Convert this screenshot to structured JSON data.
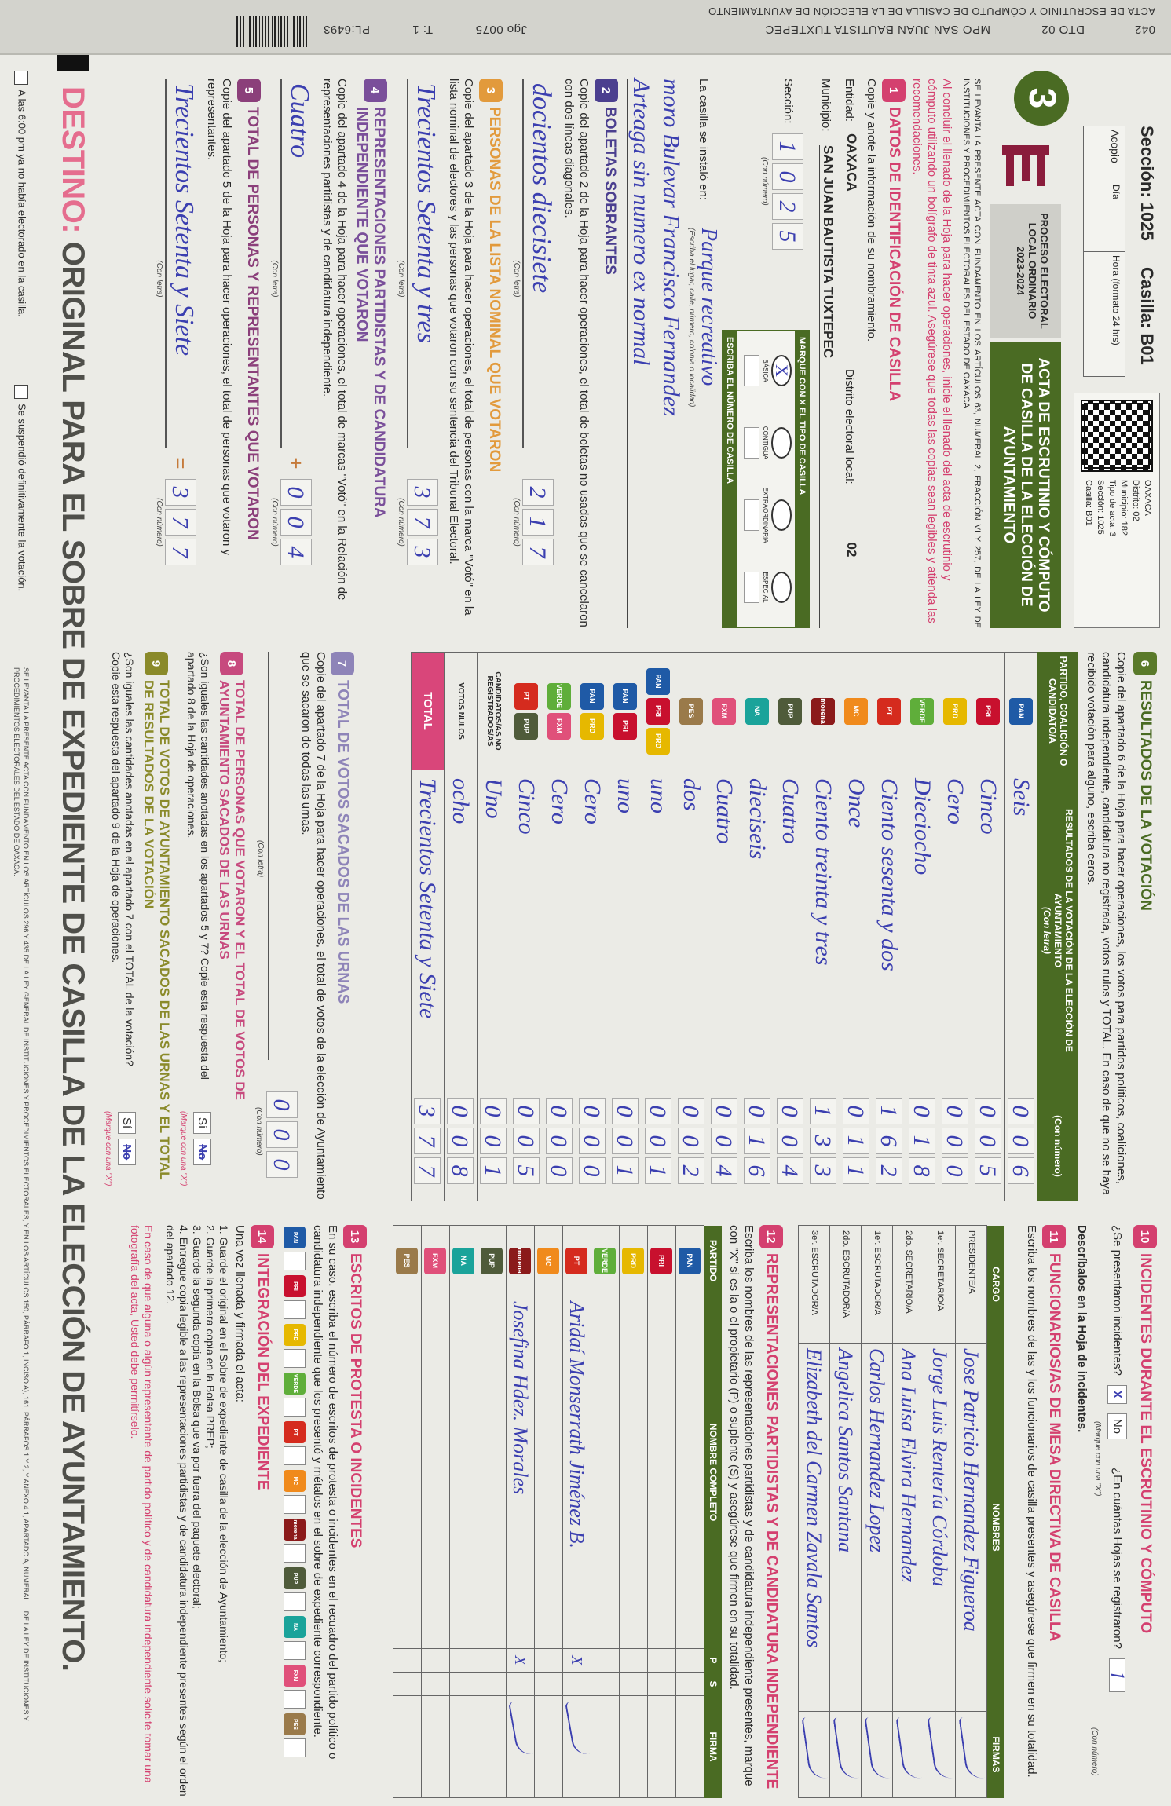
{
  "top_strip": {
    "code": "042",
    "distrito": "DTO 02",
    "municipio": "MPO SAN JUAN BAUTISTA TUXTEPEC",
    "acta": "ACTA DE ESCRUTINIO Y CÓMPUTO DE CASILLA DE LA ELECCIÓN DE AYUNTAMIENTO",
    "juego": "Jgo 0075",
    "tanto": "T: 1",
    "pl": "PL:6493"
  },
  "header": {
    "seccion": "Sección: 1025",
    "casilla": "Casilla: B01",
    "acopio": {
      "label": "Acopio",
      "dia": "Día",
      "hora": "Hora (formato 24 hrs)"
    },
    "qr_text": [
      "OAXACA",
      "Distrito: 02",
      "Municipio: 182",
      "Tipo de acta: 3",
      "Sección: 1025",
      "Casilla: B01"
    ],
    "big_number": "3",
    "process": "PROCESO ELECTORAL LOCAL ORDINARIO 2023-2024",
    "title": "ACTA DE ESCRUTINIO Y CÓMPUTO DE CASILLA DE LA ELECCIÓN DE AYUNTAMIENTO",
    "legal": "SE LEVANTA LA PRESENTE ACTA CON FUNDAMENTO EN LOS ARTÍCULOS 63, NUMERAL 2, FRACCIÓN VI Y 257, DE LA LEY DE INSTITUCIONES Y PROCEDIMIENTOS ELECTORALES DEL ESTADO DE OAXACA",
    "instructions": "Al concluir el llenado de la Hoja para hacer operaciones, inicie el llenado del acta de escrutinio y cómputo utilizando un bolígrafo de tinta azul. Asegúrese que todas las copias sean legibles y atienda las recomendaciones."
  },
  "s1": {
    "num": "1",
    "title": "DATOS DE IDENTIFICACIÓN DE CASILLA",
    "text": "Copie y anote la información de su nombramiento.",
    "entidad_label": "Entidad:",
    "entidad": "OAXACA",
    "distrito_label": "Distrito electoral local:",
    "distrito": "02",
    "municipio_label": "Municipio:",
    "municipio": "SAN JUAN BAUTISTA TUXTEPEC",
    "seccion_label": "Sección:",
    "seccion_digits": [
      "1",
      "0",
      "2",
      "5"
    ],
    "con_numero": "(Con número)",
    "tipo_header": "MARQUE CON X EL TIPO DE CASILLA",
    "tipo_options": [
      "BÁSICA",
      "CONTIGUA",
      "EXTRAORDINARIA",
      "ESPECIAL"
    ],
    "tipo_mark": "X",
    "numero_header": "ESCRIBA EL NÚMERO DE CASILLA",
    "instalo_label": "La casilla se instaló en:",
    "instalo_hint": "(Escriba el lugar, calle, número, colonia o localidad)",
    "instalo_lines": [
      "Parque recreativo",
      "moro Bulevar Francisco Fernandez",
      "Arteaga sin numero ex normal"
    ]
  },
  "s2": {
    "num": "2",
    "title": "BOLETAS SOBRANTES",
    "text": "Copie del apartado 2 de la Hoja para hacer operaciones, el total de boletas no usadas que se cancelaron con dos líneas diagonales.",
    "letra": "docientos diecisiete",
    "numero": [
      "2",
      "1",
      "7"
    ],
    "con_letra": "(Con letra)",
    "con_numero": "(Con número)"
  },
  "s3": {
    "num": "3",
    "title": "PERSONAS DE LA LISTA NOMINAL QUE VOTARON",
    "text": "Copie del apartado 3 de la Hoja para hacer operaciones, el total de personas con la marca \"Votó\" en la lista nominal de electores y las personas que votaron con su sentencia del Tribunal Electoral.",
    "letra": "Trecientos Setenta y tres",
    "numero": [
      "3",
      "7",
      "3"
    ],
    "con_letra": "(Con letra)",
    "con_numero": "(Con número)"
  },
  "s4": {
    "num": "4",
    "title": "REPRESENTACIONES PARTIDISTAS Y DE CANDIDATURA INDEPENDIENTE QUE VOTARON",
    "text": "Copie del apartado 4 de la Hoja para hacer operaciones, el total de marcas \"Votó\" en la Relación de representaciones partidistas y de candidatura independiente.",
    "letra": "Cuatro",
    "numero": [
      "0",
      "0",
      "4"
    ],
    "op": "+",
    "con_letra": "(Con letra)",
    "con_numero": "(Con número)"
  },
  "s5": {
    "num": "5",
    "title": "TOTAL DE PERSONAS Y REPRESENTANTES QUE VOTARON",
    "text": "Copie del apartado 5 de la Hoja para hacer operaciones, el total de personas que votaron y representantes.",
    "letra": "Trecientos Setenta y Siete",
    "numero": [
      "3",
      "7",
      "7"
    ],
    "op": "=",
    "con_letra": "(Con letra)",
    "con_numero": "(Con número)"
  },
  "s6": {
    "num": "6",
    "title": "RESULTADOS DE LA VOTACIÓN",
    "text": "Copie del apartado 6 de la Hoja para hacer operaciones, los votos para partidos políticos, coaliciones, candidatura independiente, candidatura no registrada, votos nulos y TOTAL. En caso de que no se haya recibido votación para alguno, escriba ceros.",
    "col_party": "PARTIDO, COALICIÓN O CANDIDATO/A",
    "col_letra": "RESULTADOS DE LA VOTACIÓN DE LA ELECCIÓN DE AYUNTAMIENTO",
    "col_letra_sub": "(Con letra)",
    "col_numero": "(Con número)",
    "rows": [
      {
        "logos": [
          {
            "t": "PAN",
            "c": "#1f5aa6",
            "icon": "pan-logo-icon"
          }
        ],
        "letra": "Seis",
        "numero": "006"
      },
      {
        "logos": [
          {
            "t": "PRI",
            "c": "#c8102e",
            "icon": "pri-logo-icon"
          }
        ],
        "letra": "Cinco",
        "numero": "005"
      },
      {
        "logos": [
          {
            "t": "PRD",
            "c": "#e6b800",
            "icon": "prd-logo-icon"
          }
        ],
        "letra": "Cero",
        "numero": "000"
      },
      {
        "logos": [
          {
            "t": "VERDE",
            "c": "#5fae3a",
            "icon": "pvem-logo-icon"
          }
        ],
        "letra": "Dieciocho",
        "numero": "018"
      },
      {
        "logos": [
          {
            "t": "PT",
            "c": "#d52b1e",
            "icon": "pt-logo-icon"
          }
        ],
        "letra": "Ciento sesenta y dos",
        "numero": "162"
      },
      {
        "logos": [
          {
            "t": "MC",
            "c": "#f08a1c",
            "icon": "mc-logo-icon"
          }
        ],
        "letra": "Once",
        "numero": "011"
      },
      {
        "logos": [
          {
            "t": "morena",
            "c": "#8b1a1a",
            "icon": "morena-logo-icon"
          }
        ],
        "letra": "Ciento treinta y tres",
        "numero": "133"
      },
      {
        "logos": [
          {
            "t": "PUP",
            "c": "#4f5b3a",
            "icon": "party-dark-logo-icon"
          }
        ],
        "letra": "Cuatro",
        "numero": "004"
      },
      {
        "logos": [
          {
            "t": "NA",
            "c": "#1aa39a",
            "icon": "party-teal-logo-icon"
          }
        ],
        "letra": "dieciseis",
        "numero": "016"
      },
      {
        "logos": [
          {
            "t": "FXM",
            "c": "#e0507a",
            "icon": "party-pink-logo-icon"
          }
        ],
        "letra": "Cuatro",
        "numero": "004"
      },
      {
        "logos": [
          {
            "t": "PES",
            "c": "#9a7a4a",
            "icon": "party-small-logo-icon"
          }
        ],
        "letra": "dos",
        "numero": "002"
      },
      {
        "logos": [
          {
            "t": "PAN",
            "c": "#1f5aa6",
            "icon": "pan-logo-icon"
          },
          {
            "t": "PRI",
            "c": "#c8102e",
            "icon": "pri-logo-icon"
          },
          {
            "t": "PRD",
            "c": "#e6b800",
            "icon": "prd-logo-icon"
          }
        ],
        "letra": "uno",
        "numero": "001"
      },
      {
        "logos": [
          {
            "t": "PAN",
            "c": "#1f5aa6",
            "icon": "pan-logo-icon"
          },
          {
            "t": "PRI",
            "c": "#c8102e",
            "icon": "pri-logo-icon"
          }
        ],
        "letra": "uno",
        "numero": "001"
      },
      {
        "logos": [
          {
            "t": "PAN",
            "c": "#1f5aa6",
            "icon": "pan-logo-icon"
          },
          {
            "t": "PRD",
            "c": "#e6b800",
            "icon": "prd-logo-icon"
          }
        ],
        "letra": "Cero",
        "numero": "000"
      },
      {
        "logos": [
          {
            "t": "VERDE",
            "c": "#5fae3a",
            "icon": "pvem-logo-icon"
          },
          {
            "t": "FXM",
            "c": "#e0507a",
            "icon": "party-pink-logo-icon"
          }
        ],
        "letra": "Cero",
        "numero": "000"
      },
      {
        "logos": [
          {
            "t": "PT",
            "c": "#d52b1e",
            "icon": "pt-logo-icon"
          },
          {
            "t": "PUP",
            "c": "#4f5b3a",
            "icon": "party-dark-logo-icon"
          }
        ],
        "letra": "Cinco",
        "numero": "005"
      },
      {
        "label": "CANDIDATOS/AS NO REGISTRADOS/AS",
        "letra": "Uno",
        "numero": "001"
      },
      {
        "label": "VOTOS NULOS",
        "letra": "ocho",
        "numero": "008"
      },
      {
        "label": "TOTAL",
        "letra": "Trecientos Setenta y Siete",
        "numero": "377",
        "total": true
      }
    ]
  },
  "s7": {
    "num": "7",
    "title": "TOTAL DE VOTOS SACADOS DE LAS URNAS",
    "text": "Copie del apartado 7 de la Hoja para hacer operaciones, el total de votos de la elección de Ayuntamiento que se sacaron de todas las urnas.",
    "numero": [
      "0",
      "0",
      "0"
    ],
    "con_letra": "(Con letra)",
    "con_numero": "(Con número)"
  },
  "s8": {
    "num": "8",
    "title": "TOTAL DE PERSONAS QUE VOTARON Y EL TOTAL DE VOTOS DE AYUNTAMIENTO SACADOS DE LAS URNAS",
    "text": "¿Son iguales las cantidades anotadas en los apartados 5 y 7? Copie esta respuesta del apartado 8 de la Hoja de operaciones.",
    "si": "Sí",
    "no": "No",
    "marked": "no",
    "hint": "(Marque con una \"X\")"
  },
  "s9": {
    "num": "9",
    "title": "TOTAL DE VOTOS DE AYUNTAMIENTO SACADOS DE LAS URNAS Y EL TOTAL DE RESULTADOS DE LA VOTACIÓN",
    "text": "¿Son iguales las cantidades anotadas en el apartado 7 con el TOTAL de la votación? Copie esta respuesta del apartado 9 de la Hoja de operaciones.",
    "si": "Sí",
    "no": "No",
    "marked": "no",
    "hint": "(Marque con una \"X\")"
  },
  "s10": {
    "num": "10",
    "title": "INCIDENTES DURANTE EL ESCRUTINIO Y CÓMPUTO",
    "question": "¿Se presentaron incidentes?",
    "si": "Sí",
    "no": "No",
    "marked": "si",
    "mark": "X",
    "hint": "(Marque con una \"X\")",
    "hojas_q": "¿En cuántas Hojas se registraron?",
    "hojas": "1",
    "con_numero": "(Con número)",
    "describe": "Descríbalos en la Hoja de incidentes."
  },
  "s11": {
    "num": "11",
    "title": "FUNCIONARIOS/AS DE MESA DIRECTIVA DE CASILLA",
    "text": "Escriba los nombres de las y los funcionarios de casilla presentes y asegúrese que firmen en su totalidad.",
    "cols": [
      "CARGO",
      "NOMBRES",
      "FIRMAS"
    ],
    "rows": [
      {
        "cargo": "PRESIDENTE/A",
        "nombre": "Jose Patricio Hernandez Figueroa"
      },
      {
        "cargo": "1er. SECRETARIO/A",
        "nombre": "Jorge Luis Rentería Córdoba"
      },
      {
        "cargo": "2do. SECRETARIO/A",
        "nombre": "Ana Luisa Elvira Hernandez"
      },
      {
        "cargo": "1er. ESCRUTADOR/A",
        "nombre": "Carlos Hernandez Lopez"
      },
      {
        "cargo": "2do. ESCRUTADOR/A",
        "nombre": "Angelica Santos Santana"
      },
      {
        "cargo": "3er. ESCRUTADOR/A",
        "nombre": "Elizabeth del Carmen Zavala Santos"
      }
    ]
  },
  "s12": {
    "num": "12",
    "title": "REPRESENTACIONES PARTIDISTAS Y DE CANDIDATURA INDEPENDIENTE",
    "text": "Escriba los nombres de las representaciones partidistas y de candidatura independiente presentes, marque con \"X\" si es la o el propietario (P) o suplente (S) y asegúrese que firmen en su totalidad.",
    "cols": [
      "PARTIDO",
      "NOMBRE COMPLETO",
      "P",
      "S",
      "FIRMA"
    ],
    "rows": [
      {
        "logo": {
          "t": "PAN",
          "c": "#1f5aa6",
          "icon": "pan-logo-icon"
        },
        "nombre": "",
        "p": "",
        "s": ""
      },
      {
        "logo": {
          "t": "PRI",
          "c": "#c8102e",
          "icon": "pri-logo-icon"
        },
        "nombre": "",
        "p": "",
        "s": ""
      },
      {
        "logo": {
          "t": "PRD",
          "c": "#e6b800",
          "icon": "prd-logo-icon"
        },
        "nombre": "",
        "p": "",
        "s": ""
      },
      {
        "logo": {
          "t": "VERDE",
          "c": "#5fae3a",
          "icon": "pvem-logo-icon"
        },
        "nombre": "",
        "p": "",
        "s": ""
      },
      {
        "logo": {
          "t": "PT",
          "c": "#d52b1e",
          "icon": "pt-logo-icon"
        },
        "nombre": "Aridaí Monserrath Jiménez B.",
        "p": "X",
        "s": "",
        "signed": true
      },
      {
        "logo": {
          "t": "MC",
          "c": "#f08a1c",
          "icon": "mc-logo-icon"
        },
        "nombre": "",
        "p": "",
        "s": ""
      },
      {
        "logo": {
          "t": "morena",
          "c": "#8b1a1a",
          "icon": "morena-logo-icon"
        },
        "nombre": "Josefina Hdez. Morales",
        "p": "X",
        "s": "",
        "signed": true
      },
      {
        "logo": {
          "t": "PUP",
          "c": "#4f5b3a",
          "icon": "party-dark-logo-icon"
        },
        "nombre": "",
        "p": "",
        "s": ""
      },
      {
        "logo": {
          "t": "NA",
          "c": "#1aa39a",
          "icon": "party-teal-logo-icon"
        },
        "nombre": "",
        "p": "",
        "s": ""
      },
      {
        "logo": {
          "t": "FXM",
          "c": "#e0507a",
          "icon": "party-pink-logo-icon"
        },
        "nombre": "",
        "p": "",
        "s": ""
      },
      {
        "logo": {
          "t": "PES",
          "c": "#9a7a4a",
          "icon": "party-small-logo-icon"
        },
        "nombre": "",
        "p": "",
        "s": ""
      }
    ]
  },
  "s13": {
    "num": "13",
    "title": "ESCRITOS DE PROTESTA O INCIDENTES",
    "text": "En su caso, escriba el número de escritos de protesta o incidentes en el recuadro del partido político o candidatura independiente que los presentó y métalos en el sobre de expediente correspondiente."
  },
  "s14": {
    "num": "14",
    "title": "INTEGRACIÓN DEL EXPEDIENTE",
    "intro": "Una vez llenada y firmada el acta:",
    "steps": [
      "1. Guarde el original en el Sobre de expediente de casilla de la elección de Ayuntamiento;",
      "2. Guarde la primera copia en la Bolsa PREP;",
      "3. Guarde la segunda copia en la Bolsa que va por fuera del paquete electoral;",
      "4. Entregue copia legible a las representaciones partidistas y de candidatura independiente presentes según el orden del apartado 12."
    ],
    "note": "En caso de que alguna o algún representante de partido político y de candidatura independiente solicite tomar una fotografía del acta, Usted debe permitírselo."
  },
  "footer": {
    "destino": "DESTINO:",
    "destino_rest": "ORIGINAL PARA EL SOBRE DE EXPEDIENTE DE CASILLA DE LA ELECCIÓN DE AYUNTAMIENTO.",
    "check1": "A las 6:00 pm ya no había electorado en la casilla.",
    "check2": "Se suspendió definitivamente la votación.",
    "legal": "SE LEVANTA LA PRESENTE ACTA CON FUNDAMENTO EN LOS ARTÍCULOS 296 Y 435 DE LA LEY GENERAL DE INSTITUCIONES Y PROCEDIMIENTOS ELECTORALES, Y EN LOS ARTÍCULOS 150, PÁRRAFO 1, INCISO A); 161, PÁRRAFOS 1 Y 2; Y ANEXO 4.1, APARTADO A, NUMERAL ... DE LA LEY DE INSTITUCIONES Y PROCEDIMIENTOS ELECTORALES DEL ESTADO DE OAXACA."
  },
  "colors": {
    "green": "#4a6b23",
    "pink": "#d4406f",
    "ink": "#3b3fb0",
    "s1": "#d4406f",
    "s2": "#4b3f8f",
    "s3": "#e29a3c",
    "s4": "#7a4f9a",
    "s5": "#8b3f7a",
    "s6": "#5a7a2a",
    "s7": "#8e84b8",
    "s8": "#c74a7e",
    "s9": "#8a8a2a"
  }
}
